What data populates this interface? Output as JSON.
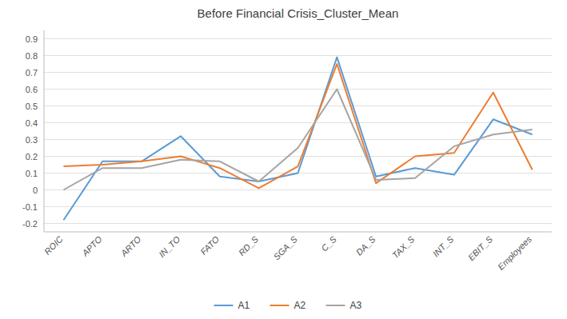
{
  "chart_data": {
    "type": "line",
    "title": "Before Financial Crisis_Cluster_Mean",
    "categories": [
      "ROIC",
      "APTO",
      "ARTO",
      "IN_TO",
      "FATO",
      "RD_S",
      "SGA_S",
      "C_S",
      "DA_S",
      "TAX_S",
      "INT_S",
      "EBIT_S",
      "Employees"
    ],
    "series": [
      {
        "name": "A1",
        "color": "#5b9bd5",
        "values": [
          -0.18,
          0.17,
          0.17,
          0.32,
          0.08,
          0.05,
          0.1,
          0.79,
          0.08,
          0.13,
          0.09,
          0.42,
          0.33
        ]
      },
      {
        "name": "A2",
        "color": "#ed7d31",
        "values": [
          0.14,
          0.15,
          0.17,
          0.2,
          0.13,
          0.01,
          0.14,
          0.75,
          0.04,
          0.2,
          0.22,
          0.58,
          0.12
        ]
      },
      {
        "name": "A3",
        "color": "#a5a5a5",
        "values": [
          0.0,
          0.13,
          0.13,
          0.18,
          0.17,
          0.05,
          0.25,
          0.6,
          0.06,
          0.07,
          0.26,
          0.33,
          0.36
        ]
      }
    ],
    "ylim": [
      -0.25,
      0.95
    ],
    "yticks": [
      -0.2,
      -0.1,
      0,
      0.1,
      0.2,
      0.3,
      0.4,
      0.5,
      0.6,
      0.7,
      0.8,
      0.9
    ],
    "grid": true,
    "legend": "bottom"
  }
}
